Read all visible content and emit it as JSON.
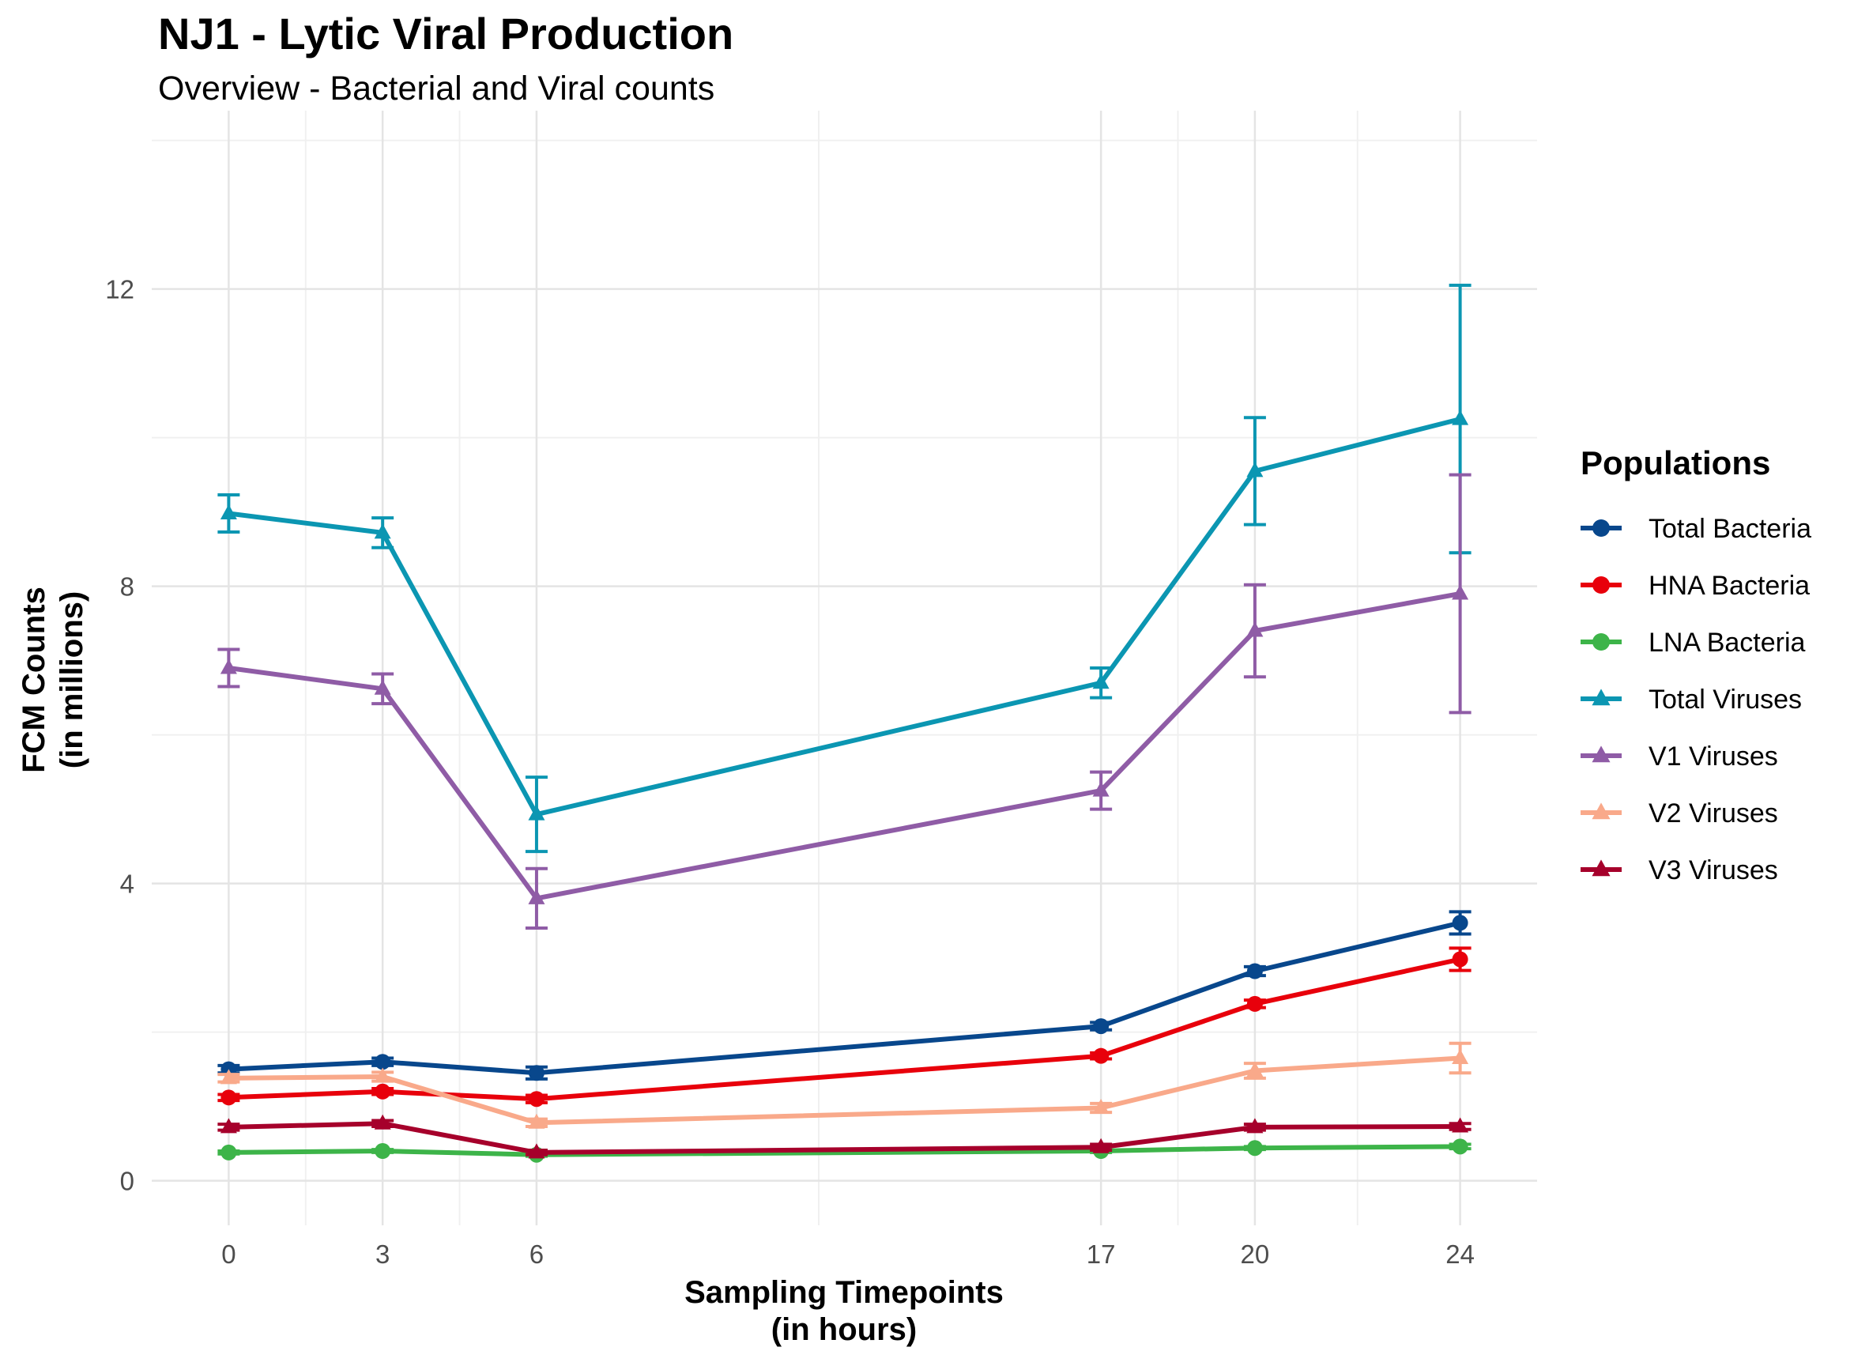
{
  "chart_data": {
    "type": "line",
    "title": "NJ1 - Lytic Viral Production",
    "subtitle": "Overview - Bacterial and Viral counts",
    "xlabel_lines": [
      "Sampling Timepoints",
      "(in hours)"
    ],
    "ylabel_lines": [
      "FCM Counts",
      "(in millions)"
    ],
    "x": [
      0,
      3,
      6,
      17,
      20,
      24
    ],
    "x_ticks": [
      0,
      3,
      6,
      17,
      20,
      24
    ],
    "y_ticks": [
      0,
      4,
      8,
      12
    ],
    "xlim": [
      -1.5,
      25.5
    ],
    "ylim": [
      -0.6,
      14.4
    ],
    "grid": true,
    "legend": {
      "title": "Populations",
      "placement": "right"
    },
    "series": [
      {
        "name": "Total Bacteria",
        "color": "#08478c",
        "marker": "circle",
        "values": [
          1.5,
          1.6,
          1.45,
          2.08,
          2.82,
          3.47
        ],
        "error": [
          0.05,
          0.05,
          0.08,
          0.05,
          0.06,
          0.15
        ]
      },
      {
        "name": "HNA Bacteria",
        "color": "#e8000b",
        "marker": "circle",
        "values": [
          1.12,
          1.2,
          1.1,
          1.68,
          2.38,
          2.98
        ],
        "error": [
          0.04,
          0.04,
          0.05,
          0.04,
          0.05,
          0.15
        ]
      },
      {
        "name": "LNA Bacteria",
        "color": "#3db449",
        "marker": "circle",
        "values": [
          0.38,
          0.4,
          0.35,
          0.4,
          0.44,
          0.46
        ],
        "error": [
          0.02,
          0.02,
          0.02,
          0.02,
          0.02,
          0.03
        ]
      },
      {
        "name": "Total Viruses",
        "color": "#0b96b2",
        "marker": "triangle",
        "values": [
          8.98,
          8.72,
          4.93,
          6.7,
          9.55,
          10.25
        ],
        "error": [
          0.25,
          0.2,
          0.5,
          0.2,
          0.72,
          1.8
        ]
      },
      {
        "name": "V1 Viruses",
        "color": "#8f5ca6",
        "marker": "triangle",
        "values": [
          6.9,
          6.62,
          3.8,
          5.25,
          7.4,
          7.9
        ],
        "error": [
          0.25,
          0.2,
          0.4,
          0.25,
          0.62,
          1.6
        ]
      },
      {
        "name": "V2 Viruses",
        "color": "#f9a98a",
        "marker": "triangle",
        "values": [
          1.38,
          1.4,
          0.78,
          0.98,
          1.48,
          1.65
        ],
        "error": [
          0.05,
          0.06,
          0.05,
          0.06,
          0.1,
          0.2
        ]
      },
      {
        "name": "V3 Viruses",
        "color": "#a6002b",
        "marker": "triangle",
        "values": [
          0.72,
          0.77,
          0.38,
          0.45,
          0.72,
          0.73
        ],
        "error": [
          0.04,
          0.04,
          0.03,
          0.04,
          0.04,
          0.04
        ]
      }
    ]
  }
}
